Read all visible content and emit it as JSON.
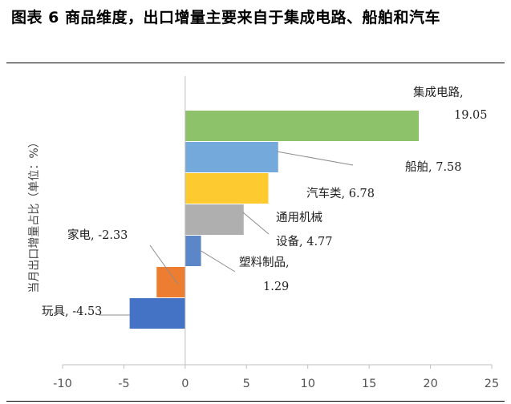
{
  "figure": {
    "title": "图表 6  商品维度，出口增量主要来自于集成电路、船舶和汽车"
  },
  "chart_data": {
    "type": "bar",
    "orientation": "horizontal",
    "title": "图表 6  商品维度，出口增量主要来自于集成电路、船舶和汽车",
    "ylabel": "当月出口增量占比（单位：%）",
    "xlabel": "",
    "xlim": [
      -10,
      25
    ],
    "x_ticks": [
      -10,
      -5,
      0,
      5,
      10,
      15,
      20,
      25
    ],
    "grid": false,
    "categories": [
      "集成电路",
      "船舶",
      "汽车类",
      "通用机械设备",
      "塑料制品",
      "家电",
      "玩具"
    ],
    "values": [
      19.05,
      7.58,
      6.78,
      4.77,
      1.29,
      -2.33,
      -4.53
    ],
    "colors": [
      "#8DC26B",
      "#74A9DB",
      "#FDCB2F",
      "#AFAFAF",
      "#5B86C8",
      "#ED7D31",
      "#4472C4"
    ],
    "data_labels": [
      [
        "集成电路,",
        "19.05"
      ],
      [
        "船舶, 7.58"
      ],
      [
        "汽车类, 6.78"
      ],
      [
        "通用机械",
        "设备, 4.77"
      ],
      [
        "塑料制品,",
        "1.29"
      ],
      [
        "家电, -2.33"
      ],
      [
        "玩具, -4.53"
      ]
    ]
  }
}
